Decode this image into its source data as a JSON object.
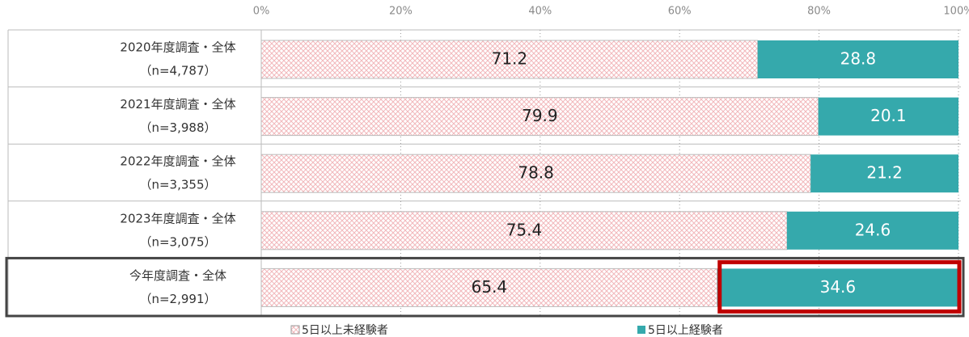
{
  "chart_data": {
    "type": "stacked-bar-horizontal",
    "categories": [
      "2020年度調査・全体",
      "2021年度調査・全体",
      "2022年度調査・全体",
      "2023年度調査・全体",
      "今年度調査・全体"
    ],
    "category_notes": [
      "（n=4,787）",
      "（n=3,988）",
      "（n=3,355）",
      "（n=3,075）",
      "（n=2,991）"
    ],
    "series": [
      {
        "name": "5日以上未経験者",
        "color": "#f2b8bc",
        "values": [
          71.2,
          79.9,
          78.8,
          75.4,
          65.4
        ]
      },
      {
        "name": "5日以上経験者",
        "color": "#35a9ac",
        "values": [
          28.8,
          20.1,
          21.2,
          24.6,
          34.6
        ]
      }
    ],
    "xlim": [
      0,
      100
    ],
    "xticks": [
      {
        "value": 0,
        "label": "0%"
      },
      {
        "value": 20,
        "label": "20%"
      },
      {
        "value": 40,
        "label": "40%"
      },
      {
        "value": 60,
        "label": "60%"
      },
      {
        "value": 80,
        "label": "80%"
      },
      {
        "value": 100,
        "label": "100%"
      }
    ],
    "grid": true,
    "legend": "bottom"
  }
}
